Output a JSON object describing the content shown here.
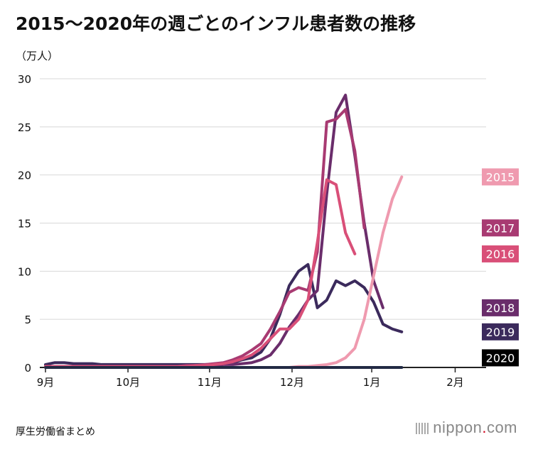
{
  "title": "2015〜2020年の週ごとのインフル患者数の推移",
  "unit_label": "（万人）",
  "source": "厚生労働省まとめ",
  "brand": {
    "prefix": "nippon",
    "dot": ".",
    "suffix": "com"
  },
  "chart_data": {
    "type": "line",
    "ylim": [
      0,
      30
    ],
    "yticks": [
      0,
      5,
      10,
      15,
      20,
      25,
      30
    ],
    "grid": true,
    "x_range": [
      0,
      47
    ],
    "xticks": [
      {
        "label": "9月",
        "x": 0
      },
      {
        "label": "10月",
        "x": 8.8
      },
      {
        "label": "11月",
        "x": 17.5
      },
      {
        "label": "12月",
        "x": 26.3
      },
      {
        "label": "1月",
        "x": 34.8
      },
      {
        "label": "2月",
        "x": 43.7
      }
    ],
    "series": [
      {
        "name": "2019",
        "color": "#3b2a5c",
        "values": [
          0.3,
          0.5,
          0.5,
          0.4,
          0.4,
          0.4,
          0.3,
          0.3,
          0.3,
          0.3,
          0.3,
          0.3,
          0.3,
          0.3,
          0.3,
          0.3,
          0.3,
          0.3,
          0.3,
          0.4,
          0.5,
          0.8,
          1.0,
          1.6,
          3.0,
          5.5,
          8.5,
          10.0,
          10.7,
          6.2,
          7.0,
          9.0,
          8.5,
          9.0,
          8.3,
          6.8,
          4.5,
          4.0,
          3.7
        ]
      },
      {
        "name": "2018",
        "color": "#6a2d6b",
        "values": [
          0.1,
          0.1,
          0.1,
          0.1,
          0.1,
          0.1,
          0.1,
          0.1,
          0.1,
          0.1,
          0.1,
          0.1,
          0.1,
          0.1,
          0.1,
          0.2,
          0.2,
          0.2,
          0.2,
          0.3,
          0.3,
          0.4,
          0.5,
          0.8,
          1.3,
          2.5,
          4.2,
          5.5,
          7.0,
          8.0,
          18.0,
          26.5,
          28.3,
          22.0,
          15.0,
          9.0,
          6.2
        ]
      },
      {
        "name": "2017",
        "color": "#a83a72",
        "values": [
          0.1,
          0.1,
          0.1,
          0.1,
          0.1,
          0.1,
          0.1,
          0.1,
          0.1,
          0.1,
          0.1,
          0.1,
          0.1,
          0.1,
          0.1,
          0.2,
          0.2,
          0.3,
          0.4,
          0.5,
          0.8,
          1.2,
          1.8,
          2.5,
          4.0,
          5.8,
          7.8,
          8.3,
          8.0,
          12.0,
          25.5,
          25.8,
          26.8,
          22.5,
          14.5
        ]
      },
      {
        "name": "2016",
        "color": "#d94f78",
        "values": [
          0.1,
          0.1,
          0.1,
          0.1,
          0.1,
          0.1,
          0.1,
          0.1,
          0.1,
          0.1,
          0.1,
          0.1,
          0.1,
          0.1,
          0.1,
          0.1,
          0.2,
          0.2,
          0.3,
          0.4,
          0.6,
          0.9,
          1.3,
          2.0,
          3.0,
          4.0,
          4.0,
          5.0,
          7.0,
          13.0,
          19.5,
          19.0,
          14.0,
          11.8
        ]
      },
      {
        "name": "2015",
        "color": "#ef9aaf",
        "values": [
          0.0,
          0.0,
          0.0,
          0.0,
          0.0,
          0.0,
          0.0,
          0.0,
          0.0,
          0.0,
          0.0,
          0.0,
          0.0,
          0.0,
          0.0,
          0.0,
          0.0,
          0.0,
          0.0,
          0.0,
          0.0,
          0.0,
          0.0,
          0.0,
          0.0,
          0.0,
          0.0,
          0.1,
          0.1,
          0.2,
          0.3,
          0.5,
          1.0,
          2.0,
          5.0,
          9.5,
          14.0,
          17.5,
          19.8
        ]
      },
      {
        "name": "2020",
        "color": "#222a44",
        "values": [
          0.0,
          0.0,
          0.0,
          0.0,
          0.0,
          0.0,
          0.0,
          0.0,
          0.0,
          0.0,
          0.0,
          0.0,
          0.0,
          0.0,
          0.0,
          0.0,
          0.0,
          0.0,
          0.0,
          0.0,
          0.0,
          0.0,
          0.0,
          0.0,
          0.0,
          0.0,
          0.0,
          0.0,
          0.0,
          0.0,
          0.0,
          0.0,
          0.0,
          0.0,
          0.0,
          0.0,
          0.0,
          0.0,
          0.0
        ]
      }
    ],
    "legend_labels": [
      {
        "name": "2015",
        "color": "#ef9aaf",
        "y": 19.8
      },
      {
        "name": "2017",
        "color": "#a83a72",
        "y": 14.5
      },
      {
        "name": "2016",
        "color": "#d94f78",
        "y": 11.8
      },
      {
        "name": "2018",
        "color": "#6a2d6b",
        "y": 6.2
      },
      {
        "name": "2019",
        "color": "#3b2a5c",
        "y": 3.7
      },
      {
        "name": "2020",
        "color": "#000000",
        "y": 1.0
      }
    ]
  }
}
